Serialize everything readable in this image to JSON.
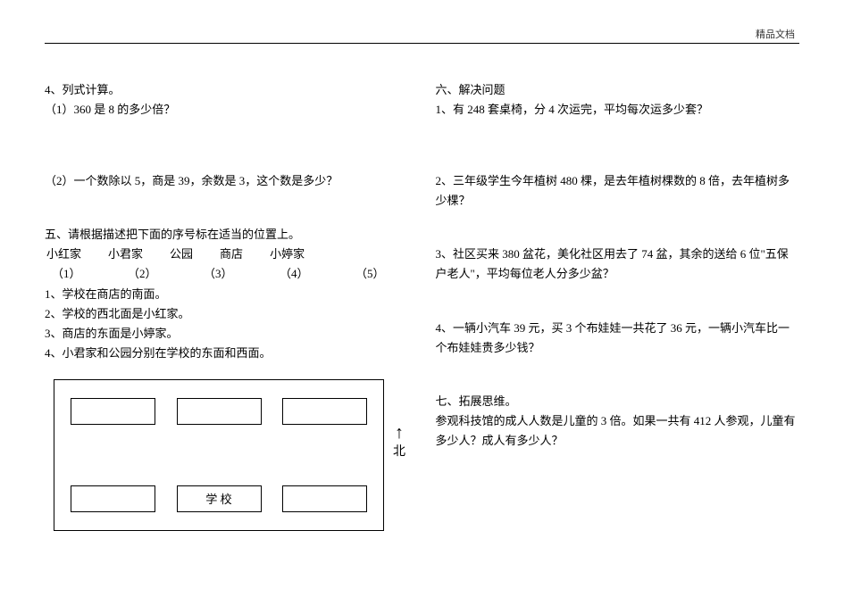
{
  "header": {
    "label": "精品文档"
  },
  "left": {
    "q4": {
      "title": "4、列式计算。",
      "p1": "（1）360 是 8 的多少倍？",
      "p2": "（2）一个数除以 5，商是 39，余数是 3，这个数是多少？"
    },
    "q5": {
      "title": "五、请根据描述把下面的序号标在适当的位置上。",
      "labels": [
        "小红家",
        "小君家",
        "公园",
        "商店",
        "小婷家"
      ],
      "nums": [
        "（1）",
        "（2）",
        "（3）",
        "（4）",
        "（5）"
      ],
      "l1": "1、学校在商店的南面。",
      "l2": "2、学校的西北面是小红家。",
      "l3": "3、商店的东面是小婷家。",
      "l4": "4、小君家和公园分别在学校的东面和西面。"
    },
    "diagram": {
      "school": "学 校",
      "north": "北"
    }
  },
  "right": {
    "q6": {
      "title": "六、解决问题",
      "p1": "1、有 248 套桌椅，分 4 次运完，平均每次运多少套？",
      "p2": "2、三年级学生今年植树 480 棵，是去年植树棵数的 8 倍，去年植树多少棵？",
      "p3": "3、社区买来 380 盆花，美化社区用去了 74 盆，其余的送给 6 位\"五保户老人\"，平均每位老人分多少盆？",
      "p4": "4、一辆小汽车 39 元，买 3 个布娃娃一共花了 36 元，一辆小汽车比一个布娃娃贵多少钱？"
    },
    "q7": {
      "title": "七、拓展思维。",
      "p1": "参观科技馆的成人人数是儿童的 3 倍。如果一共有 412 人参观，儿童有多少人？成人有多少人？"
    }
  }
}
